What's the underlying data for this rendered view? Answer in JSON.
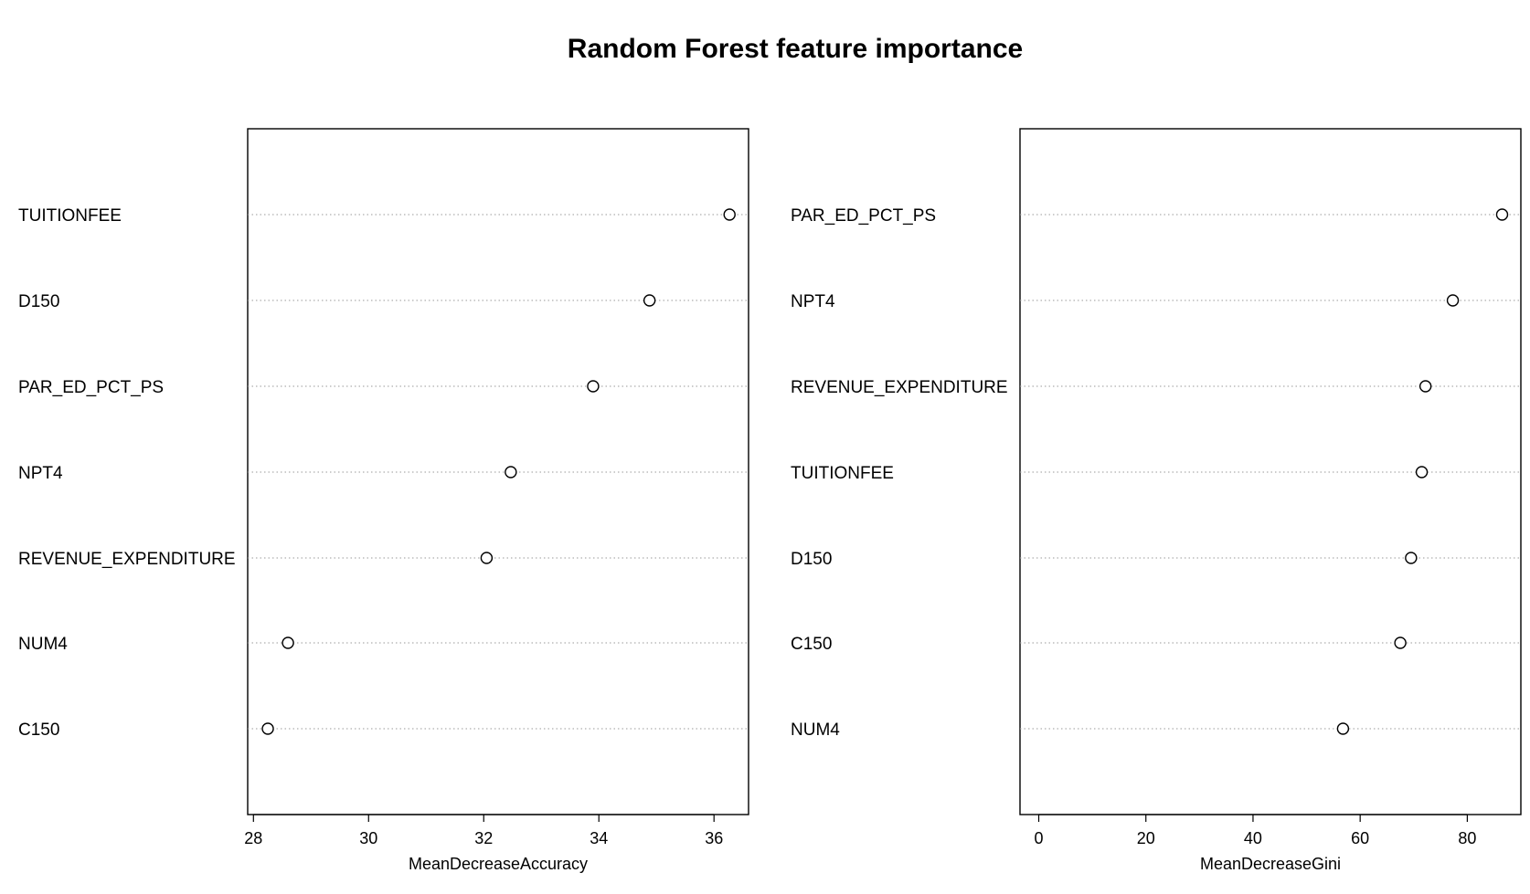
{
  "chart_data": [
    {
      "type": "scatter",
      "title": "Random Forest feature importance",
      "xlabel": "MeanDecreaseAccuracy",
      "xlim": [
        27.9,
        36.6
      ],
      "xticks": [
        28,
        30,
        32,
        34,
        36
      ],
      "grid": "dotted horizontal",
      "categories": [
        "TUITIONFEE",
        "D150",
        "PAR_ED_PCT_PS",
        "NPT4",
        "REVENUE_EXPENDITURE",
        "NUM4",
        "C150"
      ],
      "values": [
        36.27,
        34.88,
        33.9,
        32.47,
        32.05,
        28.6,
        28.25
      ]
    },
    {
      "type": "scatter",
      "xlabel": "MeanDecreaseGini",
      "xlim": [
        -3.5,
        90
      ],
      "xticks": [
        0,
        20,
        40,
        60,
        80
      ],
      "grid": "dotted horizontal",
      "categories": [
        "PAR_ED_PCT_PS",
        "NPT4",
        "REVENUE_EXPENDITURE",
        "TUITIONFEE",
        "D150",
        "C150",
        "NUM4"
      ],
      "values": [
        86.5,
        77.3,
        72.2,
        71.5,
        69.5,
        67.5,
        56.8
      ]
    }
  ]
}
